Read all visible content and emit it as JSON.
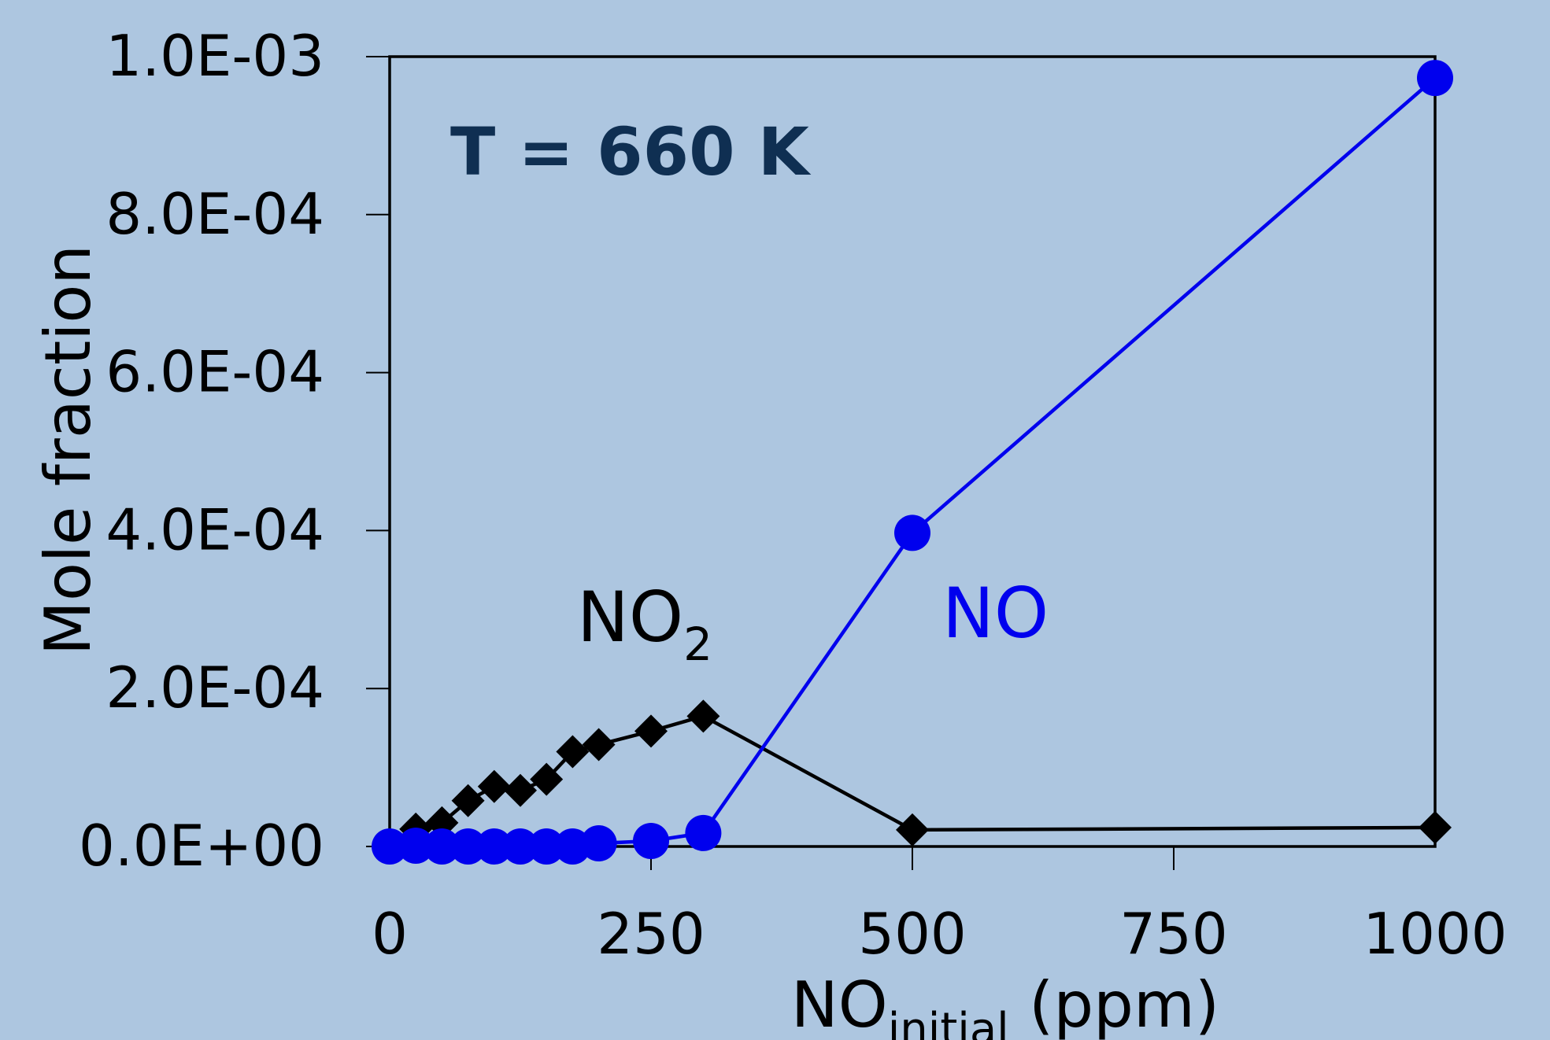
{
  "chart_data": {
    "type": "line",
    "title": "",
    "xlabel": {
      "main": "NO",
      "sub": "initial",
      "rest": " (ppm)"
    },
    "ylabel": "Mole fraction",
    "xlim": [
      0,
      1000
    ],
    "ylim": [
      0,
      0.001
    ],
    "xticks": [
      0,
      250,
      500,
      750,
      1000
    ],
    "xtick_labels": [
      "0",
      "250",
      "500",
      "750",
      "1000"
    ],
    "yticks": [
      0,
      0.0002,
      0.0004,
      0.0006,
      0.0008,
      0.001
    ],
    "ytick_labels": [
      "0.0E+00",
      "2.0E-04",
      "4.0E-04",
      "6.0E-04",
      "8.0E-04",
      "1.0E-03"
    ],
    "grid": false,
    "legend": "none",
    "series": [
      {
        "name": "NO2",
        "label_main": "NO",
        "label_sub": "2",
        "color": "#000000",
        "marker": "diamond",
        "x": [
          0,
          25,
          50,
          75,
          100,
          125,
          150,
          175,
          200,
          250,
          300,
          500,
          1000
        ],
        "y": [
          2e-06,
          2.2e-05,
          3e-05,
          5.8e-05,
          7.6e-05,
          7.1e-05,
          8.5e-05,
          0.00012,
          0.000129,
          0.000146,
          0.000165,
          2.1e-05,
          2.4e-05
        ]
      },
      {
        "name": "NO",
        "label_main": "NO",
        "label_sub": "",
        "color": "#0000ee",
        "marker": "circle",
        "x": [
          0,
          25,
          50,
          75,
          100,
          125,
          150,
          175,
          200,
          250,
          300,
          500,
          1000
        ],
        "y": [
          0,
          1e-06,
          0,
          0,
          0,
          0,
          0,
          0,
          4e-06,
          7e-06,
          1.7e-05,
          0.000397,
          0.000973
        ]
      }
    ],
    "annotations": [
      {
        "text": "T = 660 K",
        "color": "#0f2f52"
      }
    ]
  }
}
